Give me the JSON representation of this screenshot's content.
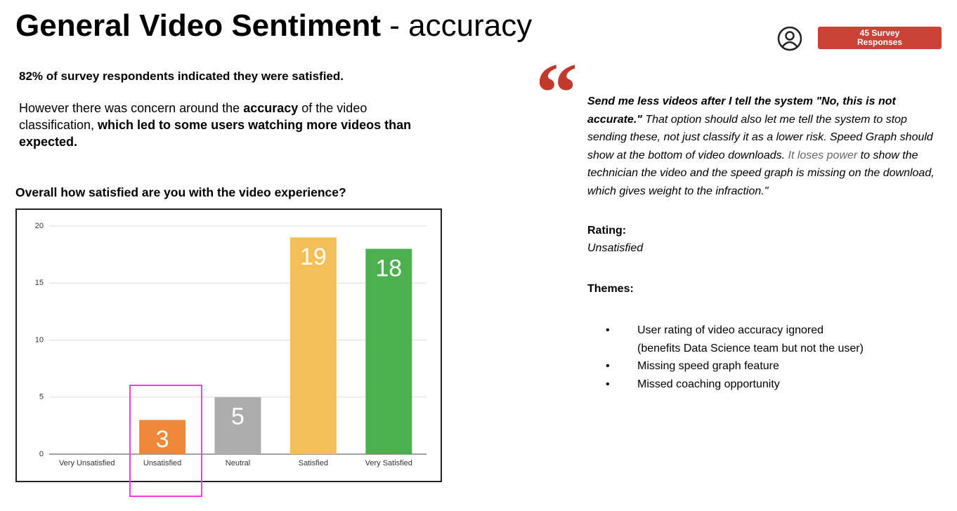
{
  "header": {
    "title_bold": "General Video Sentiment",
    "title_rest": "- accuracy",
    "badge": "45 Survey Responses"
  },
  "summary": {
    "headline": "82% of survey respondents indicated they were satisfied.",
    "paragraph": [
      {
        "text": "However there was concern around the ",
        "bold": false
      },
      {
        "text": "accuracy",
        "bold": true
      },
      {
        "text": " of the video classification, ",
        "bold": false
      },
      {
        "text": "which led to some users watching more videos than expected.",
        "bold": true
      }
    ]
  },
  "chart_data": {
    "type": "bar",
    "title": "Overall how satisfied are you with the video experience?",
    "categories": [
      "Very Unsatisfied",
      "Unsatisfied",
      "Neutral",
      "Satisfied",
      "Very Satisfied"
    ],
    "values": [
      0,
      3,
      5,
      19,
      18
    ],
    "colors": [
      null,
      "#f0883a",
      "#adadad",
      "#f5bf57",
      "#4caf50"
    ],
    "ylim": [
      0,
      20
    ],
    "yticks": [
      0,
      5,
      10,
      15,
      20
    ],
    "grid": true
  },
  "quote": {
    "runs": [
      {
        "text": "Send me less videos after I tell the system \"No, this is not accurate.\"",
        "bold": true,
        "grey": false
      },
      {
        "text": " That option should also let me tell the system to stop sending these, not just classify it as a lower risk.  Speed Graph should show at the bottom of video downloads.  ",
        "bold": false,
        "grey": false
      },
      {
        "text": "It loses power",
        "bold": false,
        "grey": true
      },
      {
        "text": " to show the technician the video and the speed graph is missing on the download, which gives weight to the infraction.\"",
        "bold": false,
        "grey": false
      }
    ],
    "rating_label": "Rating:",
    "rating": "Unsatisfied",
    "themes_label": "Themes:",
    "themes": [
      [
        "User rating of video accuracy ignored",
        "(benefits Data Science team but not the user)"
      ],
      [
        "Missing speed graph feature"
      ],
      [
        "Missed coaching opportunity"
      ]
    ]
  }
}
